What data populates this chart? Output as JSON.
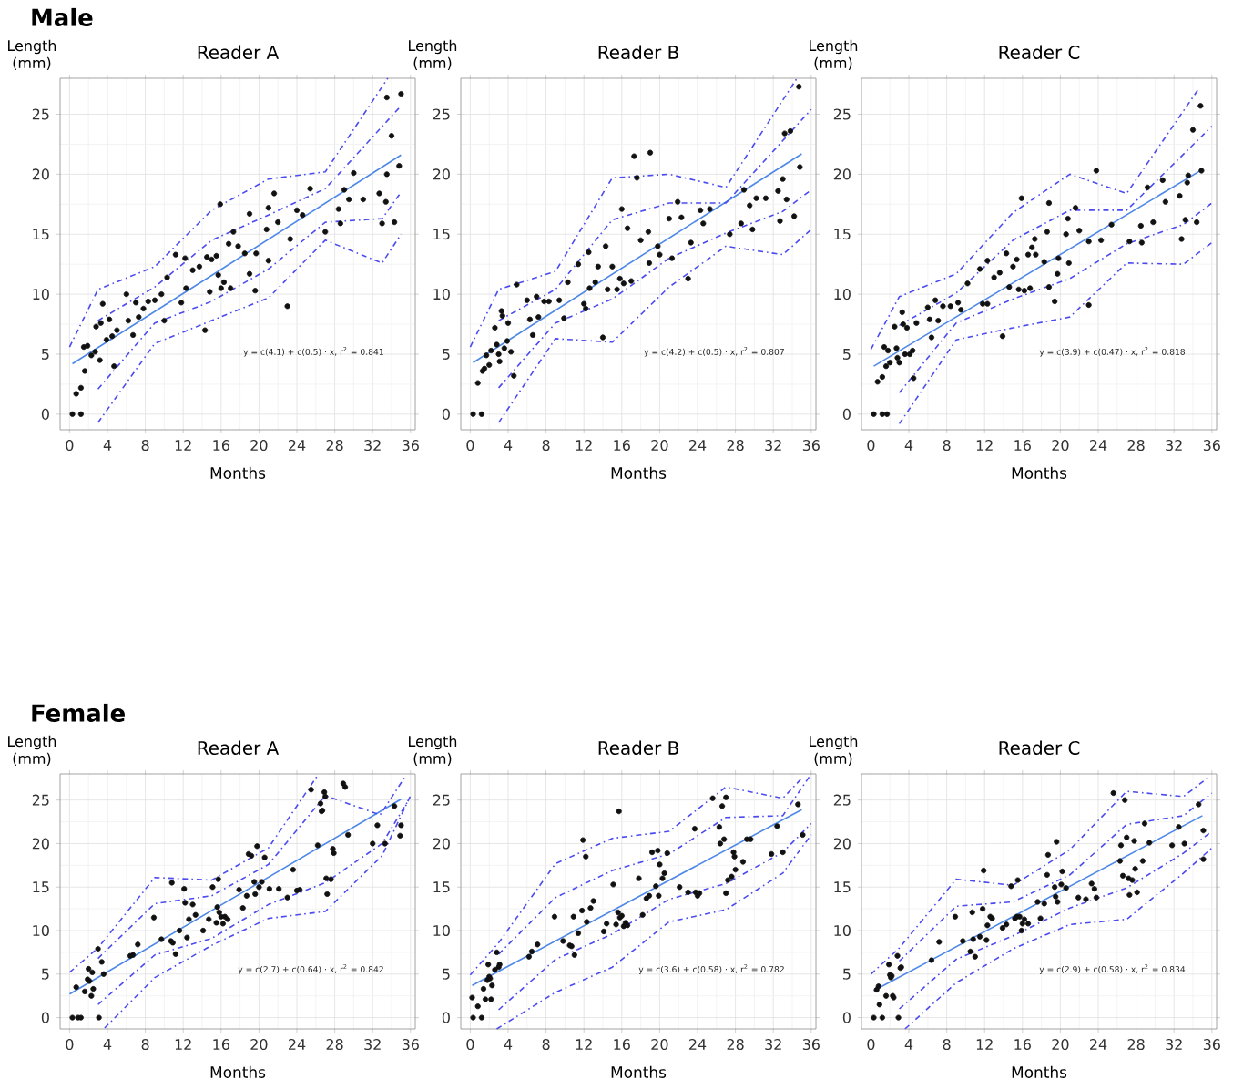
{
  "chart_data": [
    {
      "type": "scatter",
      "title": "Reader A",
      "xlabel": "Months",
      "ylabel": "Length (mm)",
      "xlim": [
        -1,
        36.5
      ],
      "ylim": [
        -1.3,
        28
      ],
      "xticks": [
        0,
        4,
        8,
        12,
        16,
        20,
        24,
        28,
        32,
        36
      ],
      "yticks": [
        0,
        5,
        10,
        15,
        20,
        25
      ],
      "grid": true,
      "annotations": [
        "Male",
        "y = c(4.1) + c(0.5) · x,  r$^{2}$ = 0.841"
      ],
      "series": [
        {
          "type": "scatter",
          "color": "#111111",
          "x": [
            0.3,
            1.2,
            0.7,
            1.2,
            1.6,
            1.5,
            1.9,
            2.3,
            2.7,
            2.8,
            3.2,
            3.3,
            3.5,
            3.9,
            4.2,
            4.5,
            4.7,
            5,
            6,
            6.2,
            6.7,
            7,
            7.3,
            7.8,
            8.3,
            9,
            9.7,
            10,
            10.3,
            11.2,
            11.8,
            12.2,
            12.3,
            13,
            13.7,
            14.3,
            14.5,
            14.8,
            15,
            15.5,
            15.7,
            15.9,
            16,
            16.3,
            16.8,
            17,
            17.3,
            17.8,
            18.5,
            19,
            19,
            19.6,
            19.7,
            20.8,
            21,
            21,
            21.6,
            22,
            23,
            23.3,
            24,
            24.6,
            25.4,
            27,
            28.4,
            28.6,
            29,
            29.5,
            30,
            31,
            32.7,
            33,
            33.5,
            33.5,
            34,
            34.3,
            34.8,
            35,
            33.4
          ],
          "values": [
            0,
            0,
            1.7,
            2.2,
            3.6,
            5.6,
            5.7,
            4.9,
            5.2,
            7.3,
            4.5,
            7.6,
            9.2,
            6.2,
            7.9,
            6.5,
            4,
            7,
            10,
            7.8,
            6.6,
            9.3,
            8.1,
            8.8,
            9.4,
            9.5,
            10,
            7.8,
            11.4,
            13.3,
            9.3,
            13,
            10.5,
            12,
            12.3,
            7,
            13.1,
            10.2,
            12.9,
            13.2,
            11.6,
            17.5,
            10.5,
            11,
            14.2,
            10.5,
            15.2,
            14,
            13.4,
            16.7,
            11.7,
            10.3,
            13.4,
            15.4,
            17.2,
            12.8,
            18.4,
            16,
            9,
            14.6,
            17,
            16.6,
            18.8,
            15.2,
            17.1,
            15.9,
            18.7,
            17.9,
            20.1,
            17.9,
            18.4,
            15.9,
            26.4,
            20,
            23.2,
            16,
            20.7,
            26.7,
            17.7
          ]
        },
        {
          "type": "line",
          "color": "#4d88e8",
          "line_style": "solid",
          "x": [
            0.3,
            35
          ],
          "values": [
            4.2,
            21.6
          ]
        },
        {
          "type": "line",
          "color": "#4b4bf0",
          "line_style": "dashed",
          "x": [
            0,
            3,
            9,
            15,
            21,
            27,
            33.6
          ],
          "values": [
            5.6,
            10.4,
            12.3,
            17,
            19.6,
            20.2,
            28
          ]
        },
        {
          "type": "line",
          "color": "#4b4bf0",
          "line_style": "dashed",
          "x": [
            3,
            9,
            15,
            21,
            27,
            35
          ],
          "values": [
            7.8,
            10.6,
            14.5,
            16.6,
            18.8,
            25.7
          ]
        },
        {
          "type": "line",
          "color": "#4b4bf0",
          "line_style": "dashed",
          "x": [
            3,
            9,
            15,
            21,
            27,
            33,
            35
          ],
          "values": [
            2.1,
            7.6,
            9.4,
            12.1,
            16,
            16.3,
            18.5
          ]
        },
        {
          "type": "line",
          "color": "#4b4bf0",
          "line_style": "dashed",
          "x": [
            3,
            9,
            15,
            21,
            27,
            33,
            35
          ],
          "values": [
            -0.7,
            5.9,
            7.8,
            9.7,
            14.5,
            12.6,
            15
          ]
        }
      ]
    },
    {
      "type": "scatter",
      "title": "Reader B",
      "xlabel": "Months",
      "ylabel": "Length (mm)",
      "xlim": [
        -1,
        36.5
      ],
      "ylim": [
        -1.3,
        28
      ],
      "xticks": [
        0,
        4,
        8,
        12,
        16,
        20,
        24,
        28,
        32,
        36
      ],
      "yticks": [
        0,
        5,
        10,
        15,
        20,
        25
      ],
      "grid": true,
      "annotations": [
        "y = c(4.2) + c(0.5) · x,  r$^{2}$ = 0.807"
      ],
      "series": [
        {
          "type": "scatter",
          "color": "#111111",
          "x": [
            0.3,
            1.2,
            0.8,
            1.3,
            1.5,
            1.7,
            2,
            2.2,
            2.6,
            2.8,
            3,
            3.1,
            3.3,
            3.4,
            3.6,
            3.9,
            4,
            4.3,
            4.6,
            4.9,
            6,
            6.3,
            6.6,
            7,
            7.2,
            7.8,
            8.3,
            9.4,
            9.9,
            10.3,
            11.4,
            12,
            12.2,
            12.5,
            12.6,
            13.2,
            13.5,
            14,
            14.3,
            14.5,
            15,
            15.5,
            15.8,
            16,
            16.2,
            16.6,
            17,
            17.3,
            17.6,
            18,
            18.8,
            18.9,
            19,
            19.8,
            20,
            21,
            21.3,
            21.9,
            22.3,
            23,
            23.3,
            24.3,
            24.6,
            25.3,
            27.4,
            28.6,
            28.9,
            29.5,
            29.8,
            30.2,
            31.2,
            32.5,
            32.7,
            33,
            33.2,
            33.4,
            33.8,
            34.2,
            34.7,
            34.8
          ],
          "values": [
            0,
            0,
            2.6,
            3.6,
            3.8,
            4.9,
            4.1,
            5.3,
            7.2,
            5.8,
            5,
            4.4,
            8.6,
            8.2,
            5.5,
            6.1,
            7.6,
            5.2,
            3.2,
            10.8,
            9.5,
            7.9,
            6.6,
            9.8,
            8.1,
            9.4,
            9.4,
            9.5,
            8,
            11,
            12.5,
            9.2,
            8.8,
            13.5,
            10.5,
            11,
            12.3,
            6.4,
            14,
            10.4,
            12.3,
            10.4,
            11.3,
            17.1,
            10.9,
            15.5,
            11.1,
            21.5,
            19.7,
            14.5,
            15.2,
            12.6,
            21.8,
            14,
            13.3,
            16.3,
            13,
            17.7,
            16.4,
            11.3,
            14.3,
            17,
            15.9,
            17.1,
            15,
            15.9,
            18.7,
            17.4,
            15.4,
            18,
            18,
            18.6,
            16.1,
            19.6,
            23.4,
            17.9,
            23.6,
            16.5,
            27.3,
            20.6
          ]
        },
        {
          "type": "line",
          "color": "#4d88e8",
          "line_style": "solid",
          "x": [
            0.3,
            35
          ],
          "values": [
            4.3,
            21.7
          ]
        },
        {
          "type": "line",
          "color": "#4b4bf0",
          "line_style": "dashed",
          "x": [
            0,
            3,
            9,
            15,
            21,
            27,
            34.5
          ],
          "values": [
            5.6,
            10.4,
            11.9,
            19.7,
            20,
            18.9,
            28
          ]
        },
        {
          "type": "line",
          "color": "#4b4bf0",
          "line_style": "dashed",
          "x": [
            3,
            9,
            15,
            21,
            27,
            36
          ],
          "values": [
            7.8,
            10.4,
            16.2,
            17.6,
            17.6,
            25.4
          ]
        },
        {
          "type": "line",
          "color": "#4b4bf0",
          "line_style": "dashed",
          "x": [
            3,
            9,
            15,
            21,
            27,
            33,
            36
          ],
          "values": [
            2.2,
            7.6,
            9.6,
            13,
            15.1,
            16.9,
            18.7
          ]
        },
        {
          "type": "line",
          "color": "#4b4bf0",
          "line_style": "dashed",
          "x": [
            3,
            9,
            15,
            21,
            27,
            33,
            36
          ],
          "values": [
            -0.7,
            6.3,
            6,
            10.6,
            14,
            13.3,
            15.4
          ]
        }
      ]
    },
    {
      "type": "scatter",
      "title": "Reader C",
      "xlabel": "Months",
      "ylabel": "Length (mm)",
      "xlim": [
        -1,
        36.5
      ],
      "ylim": [
        -1.3,
        28
      ],
      "xticks": [
        0,
        4,
        8,
        12,
        16,
        20,
        24,
        28,
        32,
        36
      ],
      "yticks": [
        0,
        5,
        10,
        15,
        20,
        25
      ],
      "grid": true,
      "annotations": [
        "y = c(3.9) + c(0.47) · x,  r$^{2}$ = 0.818"
      ],
      "series": [
        {
          "type": "scatter",
          "color": "#111111",
          "x": [
            0.3,
            1.2,
            1.7,
            0.7,
            1.2,
            1.4,
            1.6,
            1.8,
            2,
            2.5,
            2.7,
            2.8,
            3,
            3.3,
            3.4,
            3.6,
            3.8,
            4.1,
            4.4,
            4.5,
            4.8,
            6,
            6.2,
            6.4,
            6.8,
            7.1,
            7.6,
            8.4,
            9.2,
            9.5,
            10.2,
            11.5,
            11.8,
            12.3,
            12.3,
            13,
            13.6,
            13.9,
            14.3,
            14.6,
            15,
            15.4,
            15.6,
            15.9,
            16.2,
            16.6,
            16.8,
            17,
            17.3,
            17.4,
            18.3,
            18.6,
            18.8,
            18.8,
            19.4,
            19.7,
            19.8,
            20.6,
            20.8,
            20.9,
            21.6,
            22,
            23,
            23,
            23.8,
            24.3,
            25.4,
            27.3,
            28.5,
            28.6,
            29.2,
            29.8,
            30.8,
            31.1,
            32.6,
            32.8,
            33.2,
            33.4,
            33.5,
            34,
            34.4,
            34.8,
            34.9
          ],
          "values": [
            0,
            0,
            0,
            2.7,
            3.1,
            5.6,
            4,
            5.3,
            4.3,
            7.3,
            5.5,
            4.7,
            4.3,
            8.5,
            7.5,
            5,
            7.2,
            5,
            5.3,
            3,
            7.6,
            8.9,
            7.9,
            6.4,
            9.5,
            7.8,
            9,
            9,
            9.3,
            8.7,
            10.9,
            12.1,
            9.2,
            12.8,
            9.2,
            11.4,
            11.8,
            6.5,
            13.4,
            10.6,
            12.3,
            12.9,
            10.4,
            18,
            10.3,
            13.3,
            10.5,
            13.9,
            14.6,
            13.3,
            12.7,
            15.2,
            17.6,
            10.6,
            9.4,
            11.7,
            13,
            15,
            16.3,
            12.6,
            17.2,
            15.3,
            9.1,
            14.4,
            20.3,
            14.5,
            15.8,
            14.4,
            15.7,
            14.3,
            18.9,
            16,
            19.5,
            17.7,
            18.2,
            14.6,
            16.2,
            19.3,
            19.9,
            23.7,
            16,
            25.7,
            20.3
          ]
        },
        {
          "type": "line",
          "color": "#4d88e8",
          "line_style": "solid",
          "x": [
            0.3,
            35
          ],
          "values": [
            4,
            20.4
          ]
        },
        {
          "type": "line",
          "color": "#4b4bf0",
          "line_style": "dashed",
          "x": [
            0,
            3,
            9,
            15,
            21,
            27,
            34.5
          ],
          "values": [
            5.4,
            9.8,
            11.7,
            16.8,
            20,
            18.4,
            27
          ]
        },
        {
          "type": "line",
          "color": "#4b4bf0",
          "line_style": "dashed",
          "x": [
            3,
            9,
            15,
            21,
            27,
            36
          ],
          "values": [
            7.4,
            10.1,
            14.5,
            17,
            17,
            24
          ]
        },
        {
          "type": "line",
          "color": "#4b4bf0",
          "line_style": "dashed",
          "x": [
            3,
            9,
            15,
            21,
            27,
            33,
            36
          ],
          "values": [
            1.8,
            7.6,
            9.6,
            11.3,
            14.2,
            15.8,
            17.6
          ]
        },
        {
          "type": "line",
          "color": "#4b4bf0",
          "line_style": "dashed",
          "x": [
            3,
            9,
            15,
            21,
            27,
            33,
            36
          ],
          "values": [
            -0.8,
            6.2,
            7.2,
            8.1,
            12.6,
            12.5,
            14.3
          ]
        }
      ]
    },
    {
      "type": "scatter",
      "title": "Reader A",
      "xlabel": "Months",
      "ylabel": "Length (mm)",
      "xlim": [
        -1,
        36.5
      ],
      "ylim": [
        -1.3,
        28
      ],
      "xticks": [
        0,
        4,
        8,
        12,
        16,
        20,
        24,
        28,
        32,
        36
      ],
      "yticks": [
        0,
        5,
        10,
        15,
        20,
        25
      ],
      "grid": true,
      "annotations": [
        "Female",
        "y = c(2.7) + c(0.64) · x,  r$^{2}$ = 0.842"
      ],
      "series": [
        {
          "type": "scatter",
          "color": "#111111",
          "x": [
            0.3,
            0.9,
            1.2,
            0.7,
            1.6,
            1.9,
            2,
            2.1,
            2.3,
            2.4,
            2.5,
            3,
            3.1,
            3.4,
            3.6,
            6.4,
            6.7,
            7.2,
            8.9,
            9.7,
            10.7,
            10.8,
            10.9,
            11.2,
            11.6,
            12.1,
            12.2,
            12.4,
            12.6,
            13,
            13.3,
            14.1,
            14.7,
            15.1,
            15.5,
            15.6,
            15.7,
            15.8,
            16,
            16.2,
            16.4,
            16.7,
            17.9,
            18.3,
            18.7,
            18.9,
            19.2,
            19.5,
            19.6,
            19.8,
            20,
            20.3,
            20.6,
            21.1,
            22.1,
            23,
            23.6,
            24,
            24.3,
            25.5,
            26.2,
            26.5,
            26.6,
            26.7,
            26.9,
            27,
            27.1,
            27.2,
            27.6,
            27.8,
            27.9,
            28.9,
            29.1,
            29.4,
            32,
            32.5,
            33.3,
            34.3,
            34.9,
            35
          ],
          "values": [
            0,
            0,
            0,
            3.5,
            3,
            4.4,
            5.6,
            4.2,
            2.5,
            5.2,
            3.3,
            7.9,
            0,
            6.4,
            5,
            7.1,
            7.2,
            8.4,
            11.5,
            9,
            8.8,
            15.5,
            8.6,
            7.3,
            10,
            14.8,
            13.2,
            9.2,
            11.3,
            13,
            11.8,
            10,
            11.3,
            15,
            10.9,
            12.7,
            15.9,
            12.1,
            11.6,
            10.8,
            11.6,
            11.3,
            14.7,
            12.6,
            14,
            18.8,
            18.6,
            15.6,
            14.2,
            19.7,
            15,
            15.6,
            18.4,
            14.8,
            14.8,
            13.8,
            17,
            14.6,
            14.7,
            26.2,
            19.8,
            24.6,
            23.7,
            23.8,
            25.9,
            25.4,
            16,
            14.2,
            15.9,
            19.4,
            18.9,
            26.9,
            26.5,
            21,
            20,
            22.1,
            20,
            24.3,
            20.9,
            22.1
          ]
        },
        {
          "type": "line",
          "color": "#4d88e8",
          "line_style": "solid",
          "x": [
            0,
            35
          ],
          "values": [
            2.7,
            25.1
          ]
        },
        {
          "type": "line",
          "color": "#4b4bf0",
          "line_style": "dashed",
          "x": [
            0,
            3,
            9,
            15,
            21,
            26.3
          ],
          "values": [
            5.2,
            8,
            16.1,
            15.8,
            19.5,
            28
          ]
        },
        {
          "type": "line",
          "color": "#4b4bf0",
          "line_style": "dashed",
          "x": [
            3,
            9,
            15,
            21,
            27,
            32.8,
            35.5
          ],
          "values": [
            6.8,
            13.1,
            14,
            17.6,
            25.5,
            23.3,
            27.8
          ]
        },
        {
          "type": "line",
          "color": "#4b4bf0",
          "line_style": "dashed",
          "x": [
            3,
            9,
            15,
            21,
            27,
            33,
            35.8
          ],
          "values": [
            1.5,
            7.2,
            9.1,
            13,
            15.5,
            20,
            25
          ]
        },
        {
          "type": "line",
          "color": "#4b4bf0",
          "line_style": "dashed",
          "x": [
            3.7,
            9,
            15,
            21,
            27,
            33,
            36
          ],
          "values": [
            -1.2,
            4.6,
            8.3,
            11.4,
            12.2,
            18.6,
            25.5
          ]
        }
      ]
    },
    {
      "type": "scatter",
      "title": "Reader B",
      "xlabel": "Months",
      "ylabel": "Length (mm)",
      "xlim": [
        -1,
        36.5
      ],
      "ylim": [
        -1.3,
        28
      ],
      "xticks": [
        0,
        4,
        8,
        12,
        16,
        20,
        24,
        28,
        32,
        36
      ],
      "yticks": [
        0,
        5,
        10,
        15,
        20,
        25
      ],
      "grid": true,
      "annotations": [
        "y = c(3.6) + c(0.58) · x,  r$^{2}$ = 0.782"
      ],
      "series": [
        {
          "type": "scatter",
          "color": "#111111",
          "x": [
            0.2,
            0.3,
            0.8,
            1.2,
            1.4,
            1.6,
            1.8,
            1.9,
            2,
            2.1,
            2.2,
            2.3,
            2.6,
            2.8,
            3,
            3.1,
            6.2,
            6.5,
            7.1,
            8.9,
            9.8,
            10.5,
            10.7,
            10.9,
            11,
            11.4,
            11.8,
            11.9,
            12.2,
            12.3,
            12.7,
            13,
            14.1,
            14.4,
            15.1,
            15.4,
            15.6,
            15.7,
            15.8,
            16,
            16.2,
            16.4,
            16.6,
            17.8,
            18.2,
            18.6,
            18.9,
            19.2,
            19.6,
            19.8,
            19.9,
            20,
            20.3,
            20.5,
            20.8,
            22.1,
            23,
            23.7,
            23.8,
            24,
            24.2,
            25.6,
            26.3,
            26.4,
            26.6,
            26.8,
            27,
            27,
            27.2,
            27.6,
            27.8,
            27.9,
            28,
            28.8,
            29.2,
            29.6,
            31.8,
            32.4,
            33,
            34.6,
            35.1
          ],
          "values": [
            2.3,
            0,
            1.3,
            0,
            3.3,
            2.1,
            4.3,
            6.1,
            4.7,
            4.5,
            2.1,
            3.7,
            5.5,
            7.5,
            5.8,
            6.1,
            7,
            7.6,
            8.4,
            11.6,
            8.8,
            8.3,
            8.2,
            11.6,
            7.2,
            9.7,
            12.3,
            20.4,
            18.5,
            11,
            12.6,
            13.4,
            9.9,
            10.8,
            15.3,
            10.7,
            12.1,
            23.7,
            11.5,
            11.7,
            10.5,
            10.9,
            10.6,
            16,
            11.8,
            13.7,
            14,
            19,
            15.1,
            19.2,
            14,
            17.6,
            16,
            16.6,
            18.9,
            15,
            14.4,
            21.7,
            14.4,
            14,
            14.3,
            25.2,
            21.9,
            20,
            24.3,
            20.5,
            25.3,
            14.3,
            15.8,
            16.2,
            19,
            18.5,
            17,
            17.9,
            20.5,
            20.5,
            18.8,
            22,
            19,
            24.5,
            21
          ]
        },
        {
          "type": "line",
          "color": "#4d88e8",
          "line_style": "solid",
          "x": [
            0.2,
            35
          ],
          "values": [
            3.7,
            23.9
          ]
        },
        {
          "type": "line",
          "color": "#4b4bf0",
          "line_style": "dashed",
          "x": [
            0,
            3,
            9,
            15,
            21,
            27,
            33,
            35
          ],
          "values": [
            4.9,
            8.6,
            17.7,
            20.6,
            21.4,
            26.5,
            25.2,
            27.5
          ]
        },
        {
          "type": "line",
          "color": "#4b4bf0",
          "line_style": "dashed",
          "x": [
            3,
            9,
            15,
            21,
            27,
            33,
            36
          ],
          "values": [
            7.3,
            13.8,
            16.9,
            18.8,
            23,
            23.2,
            28
          ]
        },
        {
          "type": "line",
          "color": "#4b4bf0",
          "line_style": "dashed",
          "x": [
            3,
            9,
            15,
            21,
            27,
            33,
            36
          ],
          "values": [
            0.9,
            6.7,
            9.6,
            13.6,
            15.4,
            19,
            22.3
          ]
        },
        {
          "type": "line",
          "color": "#4b4bf0",
          "line_style": "dashed",
          "x": [
            2.8,
            9,
            15,
            21,
            27,
            33,
            36
          ],
          "values": [
            -1.3,
            2.9,
            5.8,
            11,
            12.4,
            16.6,
            21
          ]
        }
      ]
    },
    {
      "type": "scatter",
      "title": "Reader C",
      "xlabel": "Months",
      "ylabel": "Length (mm)",
      "xlim": [
        -1,
        36.5
      ],
      "ylim": [
        -1.3,
        28
      ],
      "xticks": [
        0,
        4,
        8,
        12,
        16,
        20,
        24,
        28,
        32,
        36
      ],
      "yticks": [
        0,
        5,
        10,
        15,
        20,
        25
      ],
      "grid": true,
      "annotations": [
        "y = c(2.9) + c(0.58) · x,  r$^{2}$ = 0.834"
      ],
      "series": [
        {
          "type": "scatter",
          "color": "#111111",
          "x": [
            0.3,
            0.6,
            0.8,
            0.9,
            1.2,
            1.6,
            1.9,
            2,
            2.1,
            2.2,
            2.3,
            2.4,
            2.8,
            2.9,
            3.1,
            3.2,
            6.4,
            7.2,
            8.9,
            9.7,
            10.5,
            10.7,
            10.8,
            11,
            11.5,
            11.8,
            11.9,
            12.2,
            12.3,
            12.6,
            12.8,
            13.9,
            14.3,
            14.8,
            15.2,
            15.4,
            15.5,
            15.7,
            15.9,
            16,
            16.2,
            16.6,
            17.6,
            17.9,
            18.3,
            18.6,
            18.7,
            19.4,
            19.5,
            19.6,
            19.7,
            20.1,
            20.2,
            20.6,
            21.9,
            22.7,
            23.3,
            23.6,
            23.8,
            25.6,
            26.3,
            26.4,
            26.6,
            26.8,
            27,
            27.2,
            27.3,
            27.6,
            27.8,
            27.9,
            28.1,
            28.7,
            28.9,
            29.4,
            31.8,
            32.5,
            33.1,
            34.6,
            35.1,
            35.1
          ],
          "values": [
            0,
            3.2,
            3.6,
            1.5,
            0,
            2.5,
            6.1,
            4.9,
            4.6,
            4.8,
            2.5,
            2.3,
            7.1,
            0,
            5.7,
            5.8,
            6.6,
            8.7,
            11.6,
            8.8,
            7.6,
            12.1,
            9,
            7,
            9.3,
            12.5,
            16.9,
            8.9,
            10.6,
            11.6,
            11.4,
            10.3,
            10.7,
            15.1,
            11.4,
            11.6,
            15.8,
            11.6,
            10,
            10.8,
            11.3,
            10.8,
            13.3,
            11.4,
            13.1,
            16.4,
            18.7,
            15,
            13.9,
            20.2,
            13.3,
            15.3,
            16.8,
            14.9,
            13.8,
            13.6,
            15.4,
            14.8,
            13.8,
            25.8,
            18,
            19.8,
            16.3,
            25,
            20.7,
            16,
            14.1,
            15.8,
            20.3,
            17.1,
            14.4,
            18,
            22.3,
            20.1,
            19.8,
            21.9,
            20,
            24.5,
            21.5,
            18.2
          ]
        },
        {
          "type": "line",
          "color": "#4d88e8",
          "line_style": "solid",
          "x": [
            0.3,
            35
          ],
          "values": [
            3.1,
            23.2
          ]
        },
        {
          "type": "line",
          "color": "#4b4bf0",
          "line_style": "dashed",
          "x": [
            0,
            3,
            9,
            15,
            21,
            27,
            33,
            35.5
          ],
          "values": [
            5,
            8,
            15.9,
            15.2,
            19.3,
            26,
            25.4,
            27.5
          ]
        },
        {
          "type": "line",
          "color": "#4b4bf0",
          "line_style": "dashed",
          "x": [
            3,
            9,
            15,
            21,
            27,
            33,
            36
          ],
          "values": [
            6.5,
            12.8,
            13.3,
            16.4,
            22.2,
            23.2,
            25.8
          ]
        },
        {
          "type": "line",
          "color": "#4b4bf0",
          "line_style": "dashed",
          "x": [
            3,
            9,
            15,
            21,
            27,
            33,
            36
          ],
          "values": [
            1,
            6.7,
            9.4,
            12.6,
            14.9,
            18.9,
            21.4
          ]
        },
        {
          "type": "line",
          "color": "#4b4bf0",
          "line_style": "dashed",
          "x": [
            3.6,
            9,
            15,
            21,
            27,
            33,
            36
          ],
          "values": [
            -1.3,
            4,
            7.9,
            10.7,
            11.3,
            16.6,
            19.5
          ]
        }
      ]
    }
  ]
}
